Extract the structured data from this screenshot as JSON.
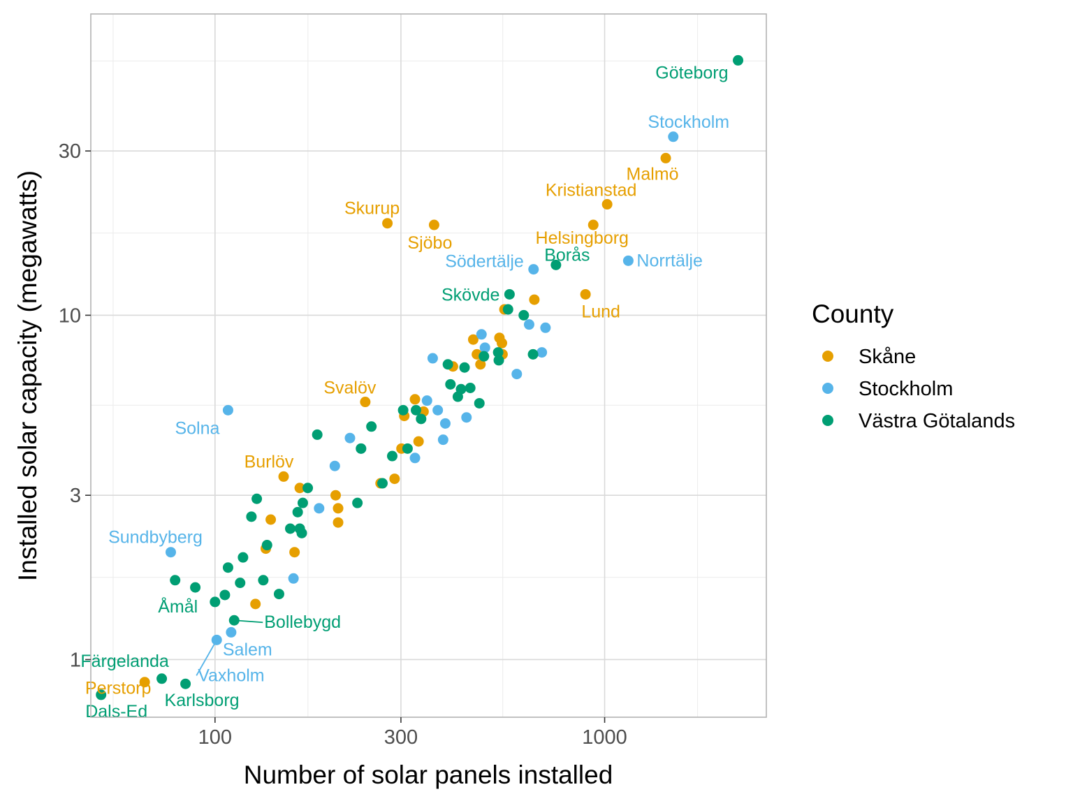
{
  "chart_data": {
    "type": "scatter",
    "title": "",
    "xlabel": "Number of solar panels installed",
    "ylabel": "Installed solar capacity (megawatts)",
    "x_scale": "log",
    "y_scale": "log",
    "xlim": [
      48,
      2600
    ],
    "ylim": [
      0.68,
      75
    ],
    "x_ticks": [
      100,
      300,
      1000
    ],
    "x_tick_labels": [
      "100",
      "300",
      "1000"
    ],
    "y_ticks": [
      1,
      3,
      10,
      30
    ],
    "y_tick_labels": [
      "1",
      "3",
      "10",
      "30"
    ],
    "grid": true,
    "legend": {
      "title": "County",
      "placement": "right",
      "entries": [
        "Skåne",
        "Stockholm",
        "Västra Götalands"
      ]
    },
    "colors": {
      "Skåne": "#E69F00",
      "Stockholm": "#56B4E9",
      "Västra Götalands": "#009E73"
    },
    "series": [
      {
        "name": "Skåne",
        "points": [
          {
            "x": 66,
            "y": 0.86,
            "label": "Perstorp"
          },
          {
            "x": 243,
            "y": 5.6,
            "label": "Svalöv"
          },
          {
            "x": 150,
            "y": 3.4,
            "label": "Burlöv"
          },
          {
            "x": 277,
            "y": 18.5,
            "label": "Skurup"
          },
          {
            "x": 365,
            "y": 18.3,
            "label": "Sjöbo"
          },
          {
            "x": 1015,
            "y": 21,
            "label": "Kristianstad"
          },
          {
            "x": 935,
            "y": 18.3,
            "label": "Helsingborg"
          },
          {
            "x": 1435,
            "y": 28.6,
            "label": "Malmö"
          },
          {
            "x": 893,
            "y": 11.5,
            "label": "Lund"
          },
          {
            "x": 127,
            "y": 1.45
          },
          {
            "x": 139,
            "y": 2.55
          },
          {
            "x": 135,
            "y": 2.1
          },
          {
            "x": 160,
            "y": 2.05
          },
          {
            "x": 165,
            "y": 3.15
          },
          {
            "x": 204,
            "y": 3.0
          },
          {
            "x": 207,
            "y": 2.75
          },
          {
            "x": 207,
            "y": 2.5
          },
          {
            "x": 266,
            "y": 3.25
          },
          {
            "x": 289,
            "y": 3.35
          },
          {
            "x": 301,
            "y": 4.1
          },
          {
            "x": 306,
            "y": 5.1
          },
          {
            "x": 326,
            "y": 5.7
          },
          {
            "x": 333,
            "y": 4.3
          },
          {
            "x": 343,
            "y": 5.25
          },
          {
            "x": 408,
            "y": 7.1
          },
          {
            "x": 460,
            "y": 8.5
          },
          {
            "x": 470,
            "y": 7.7
          },
          {
            "x": 480,
            "y": 7.2
          },
          {
            "x": 537,
            "y": 8.6
          },
          {
            "x": 545,
            "y": 8.3
          },
          {
            "x": 547,
            "y": 7.7
          },
          {
            "x": 553,
            "y": 10.4
          },
          {
            "x": 660,
            "y": 11.1
          }
        ]
      },
      {
        "name": "Stockholm",
        "points": [
          {
            "x": 108,
            "y": 5.3,
            "label": "Solna"
          },
          {
            "x": 77,
            "y": 2.05,
            "label": "Sundbyberg"
          },
          {
            "x": 110,
            "y": 1.2,
            "label": "Salem"
          },
          {
            "x": 101,
            "y": 1.14,
            "label": "Vaxholm"
          },
          {
            "x": 657,
            "y": 13.6,
            "label": "Södertälje"
          },
          {
            "x": 1150,
            "y": 14.4,
            "label": "Norrtälje"
          },
          {
            "x": 1500,
            "y": 33,
            "label": "Stockholm"
          },
          {
            "x": 159,
            "y": 1.72
          },
          {
            "x": 185,
            "y": 2.75
          },
          {
            "x": 203,
            "y": 3.65
          },
          {
            "x": 222,
            "y": 4.4
          },
          {
            "x": 237,
            "y": 4.1
          },
          {
            "x": 326,
            "y": 3.85
          },
          {
            "x": 350,
            "y": 5.65
          },
          {
            "x": 362,
            "y": 7.5
          },
          {
            "x": 373,
            "y": 5.3
          },
          {
            "x": 385,
            "y": 4.35
          },
          {
            "x": 390,
            "y": 4.85
          },
          {
            "x": 442,
            "y": 5.05
          },
          {
            "x": 483,
            "y": 8.8
          },
          {
            "x": 490,
            "y": 7.6
          },
          {
            "x": 493,
            "y": 8.05
          },
          {
            "x": 595,
            "y": 6.75
          },
          {
            "x": 640,
            "y": 9.4
          },
          {
            "x": 690,
            "y": 7.8
          },
          {
            "x": 705,
            "y": 9.2
          }
        ]
      },
      {
        "name": "Västra Götalands",
        "points": [
          {
            "x": 2200,
            "y": 55,
            "label": "Göteborg"
          },
          {
            "x": 750,
            "y": 14.0,
            "label": "Borås"
          },
          {
            "x": 570,
            "y": 11.5,
            "label": "Skövde"
          },
          {
            "x": 79,
            "y": 1.7,
            "label": "Åmål"
          },
          {
            "x": 112,
            "y": 1.3,
            "label": "Bollebygd"
          },
          {
            "x": 73,
            "y": 0.88,
            "label": "Färgelanda"
          },
          {
            "x": 84,
            "y": 0.85,
            "label": "Karlsborg"
          },
          {
            "x": 51,
            "y": 0.79,
            "label": "Dals-Ed"
          },
          {
            "x": 89,
            "y": 1.62
          },
          {
            "x": 100,
            "y": 1.47
          },
          {
            "x": 106,
            "y": 1.54
          },
          {
            "x": 108,
            "y": 1.85
          },
          {
            "x": 116,
            "y": 1.67
          },
          {
            "x": 118,
            "y": 1.98
          },
          {
            "x": 124,
            "y": 2.6
          },
          {
            "x": 128,
            "y": 2.93
          },
          {
            "x": 133,
            "y": 1.7
          },
          {
            "x": 136,
            "y": 2.15
          },
          {
            "x": 146,
            "y": 1.55
          },
          {
            "x": 156,
            "y": 2.4
          },
          {
            "x": 163,
            "y": 2.68
          },
          {
            "x": 165,
            "y": 2.4
          },
          {
            "x": 167,
            "y": 2.33
          },
          {
            "x": 168,
            "y": 2.85
          },
          {
            "x": 173,
            "y": 3.15
          },
          {
            "x": 183,
            "y": 4.5
          },
          {
            "x": 232,
            "y": 2.85
          },
          {
            "x": 237,
            "y": 4.1
          },
          {
            "x": 252,
            "y": 4.75
          },
          {
            "x": 269,
            "y": 3.25
          },
          {
            "x": 285,
            "y": 3.9
          },
          {
            "x": 304,
            "y": 5.3
          },
          {
            "x": 312,
            "y": 4.1
          },
          {
            "x": 328,
            "y": 5.3
          },
          {
            "x": 338,
            "y": 5.0
          },
          {
            "x": 396,
            "y": 7.2
          },
          {
            "x": 402,
            "y": 6.3
          },
          {
            "x": 420,
            "y": 5.8
          },
          {
            "x": 428,
            "y": 6.1
          },
          {
            "x": 437,
            "y": 7.05
          },
          {
            "x": 452,
            "y": 6.15
          },
          {
            "x": 477,
            "y": 5.55
          },
          {
            "x": 490,
            "y": 7.6
          },
          {
            "x": 533,
            "y": 7.8
          },
          {
            "x": 535,
            "y": 7.4
          },
          {
            "x": 565,
            "y": 10.4
          },
          {
            "x": 620,
            "y": 10.0
          },
          {
            "x": 655,
            "y": 7.7
          }
        ]
      }
    ]
  }
}
